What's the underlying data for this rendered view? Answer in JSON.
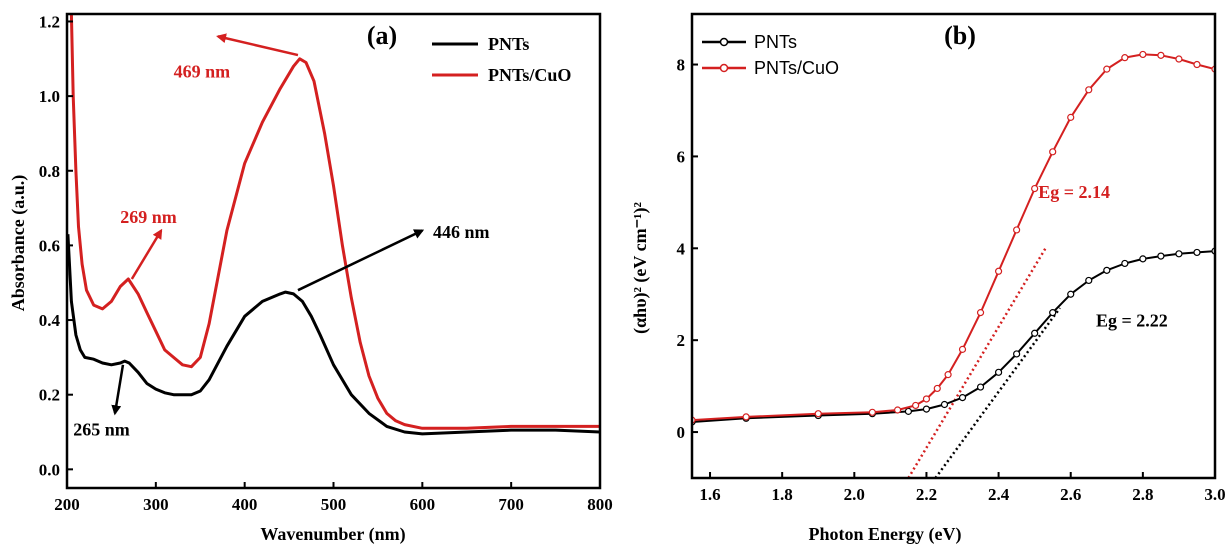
{
  "colors": {
    "pnts": "#000000",
    "cuo": "#d42020"
  },
  "chart_data": [
    {
      "type": "line",
      "panel_label": "(a)",
      "xlabel": "Wavenumber (nm)",
      "ylabel": "Absorbance (a.u.)",
      "xlim": [
        200,
        800
      ],
      "ylim": [
        -0.05,
        1.22
      ],
      "xticks": [
        200,
        300,
        400,
        500,
        600,
        700,
        800
      ],
      "yticks": [
        0.0,
        0.2,
        0.4,
        0.6,
        0.8,
        1.0,
        1.2
      ],
      "legend_position": "top-right",
      "series": [
        {
          "name": "PNTs",
          "color": "#000000",
          "x": [
            201,
            205,
            210,
            215,
            220,
            230,
            240,
            250,
            260,
            265,
            270,
            280,
            290,
            300,
            310,
            320,
            330,
            340,
            350,
            360,
            380,
            400,
            420,
            440,
            446,
            455,
            465,
            475,
            485,
            500,
            520,
            540,
            560,
            580,
            600,
            650,
            700,
            750,
            800
          ],
          "y": [
            0.63,
            0.45,
            0.36,
            0.32,
            0.3,
            0.295,
            0.285,
            0.28,
            0.285,
            0.29,
            0.285,
            0.26,
            0.23,
            0.215,
            0.205,
            0.2,
            0.2,
            0.2,
            0.21,
            0.24,
            0.33,
            0.41,
            0.45,
            0.47,
            0.475,
            0.47,
            0.45,
            0.41,
            0.36,
            0.28,
            0.2,
            0.15,
            0.115,
            0.1,
            0.095,
            0.1,
            0.105,
            0.105,
            0.1
          ]
        },
        {
          "name": "PNTs/CuO",
          "color": "#d42020",
          "x": [
            205,
            207,
            210,
            213,
            217,
            222,
            230,
            240,
            250,
            260,
            269,
            280,
            290,
            300,
            310,
            320,
            330,
            340,
            350,
            360,
            380,
            400,
            420,
            440,
            455,
            462,
            469,
            478,
            490,
            500,
            510,
            520,
            530,
            540,
            550,
            560,
            570,
            580,
            600,
            650,
            700,
            750,
            800
          ],
          "y": [
            1.22,
            1.0,
            0.8,
            0.65,
            0.55,
            0.48,
            0.44,
            0.43,
            0.45,
            0.49,
            0.51,
            0.47,
            0.42,
            0.37,
            0.32,
            0.3,
            0.28,
            0.275,
            0.3,
            0.39,
            0.64,
            0.82,
            0.93,
            1.02,
            1.08,
            1.1,
            1.09,
            1.04,
            0.9,
            0.76,
            0.6,
            0.46,
            0.34,
            0.25,
            0.19,
            0.15,
            0.13,
            0.12,
            0.11,
            0.11,
            0.115,
            0.115,
            0.115
          ]
        }
      ],
      "annotations": [
        {
          "text": "469 nm",
          "color": "#d42020",
          "x": 320,
          "y": 1.05,
          "arrow_from": [
            460,
            1.11
          ],
          "arrow_to": [
            370,
            1.16
          ]
        },
        {
          "text": "269 nm",
          "color": "#d42020",
          "x": 260,
          "y": 0.66,
          "arrow_from": [
            273,
            0.51
          ],
          "arrow_to": [
            306,
            0.64
          ]
        },
        {
          "text": "446 nm",
          "color": "#000000",
          "x": 612,
          "y": 0.62,
          "arrow_from": [
            460,
            0.48
          ],
          "arrow_to": [
            600,
            0.64
          ]
        },
        {
          "text": "265 nm",
          "color": "#000000",
          "x": 207,
          "y": 0.09,
          "arrow_from": [
            263,
            0.28
          ],
          "arrow_to": [
            254,
            0.15
          ]
        }
      ]
    },
    {
      "type": "scatter",
      "panel_label": "(b)",
      "xlabel": "Photon Energy (eV)",
      "ylabel": "(αhυ)² (eV cm⁻¹)²",
      "xlim": [
        1.55,
        3.0
      ],
      "ylim": [
        -1.0,
        9.1
      ],
      "xticks": [
        1.6,
        1.8,
        2.0,
        2.2,
        2.4,
        2.6,
        2.8,
        3.0
      ],
      "yticks": [
        0,
        2,
        4,
        6,
        8
      ],
      "legend_position": "top-left",
      "series": [
        {
          "name": "PNTs",
          "color": "#000000",
          "x": [
            1.55,
            1.7,
            1.9,
            2.05,
            2.15,
            2.2,
            2.25,
            2.3,
            2.35,
            2.4,
            2.45,
            2.5,
            2.55,
            2.6,
            2.65,
            2.7,
            2.75,
            2.8,
            2.85,
            2.9,
            2.95,
            3.0
          ],
          "y": [
            0.22,
            0.3,
            0.36,
            0.4,
            0.45,
            0.5,
            0.6,
            0.75,
            0.98,
            1.3,
            1.7,
            2.15,
            2.6,
            3.0,
            3.3,
            3.52,
            3.67,
            3.77,
            3.83,
            3.88,
            3.91,
            3.94
          ]
        },
        {
          "name": "PNTs/CuO",
          "color": "#d42020",
          "x": [
            1.55,
            1.7,
            1.9,
            2.05,
            2.12,
            2.17,
            2.2,
            2.23,
            2.26,
            2.3,
            2.35,
            2.4,
            2.45,
            2.5,
            2.55,
            2.6,
            2.65,
            2.7,
            2.75,
            2.8,
            2.85,
            2.9,
            2.95,
            3.0
          ],
          "y": [
            0.26,
            0.33,
            0.4,
            0.43,
            0.48,
            0.58,
            0.72,
            0.95,
            1.25,
            1.8,
            2.6,
            3.5,
            4.4,
            5.3,
            6.1,
            6.85,
            7.45,
            7.9,
            8.15,
            8.22,
            8.2,
            8.12,
            8.0,
            7.9
          ]
        }
      ],
      "tangent_lines": [
        {
          "color": "#d42020",
          "from": [
            2.15,
            -1.0
          ],
          "to": [
            2.53,
            4.0
          ]
        },
        {
          "color": "#000000",
          "from": [
            2.225,
            -1.0
          ],
          "to": [
            2.57,
            2.7
          ]
        }
      ],
      "annotations": [
        {
          "text": "Eg = 2.14",
          "color": "#d42020",
          "x": 2.51,
          "y": 5.1
        },
        {
          "text": "Eg = 2.22",
          "color": "#000000",
          "x": 2.67,
          "y": 2.3
        }
      ]
    }
  ]
}
